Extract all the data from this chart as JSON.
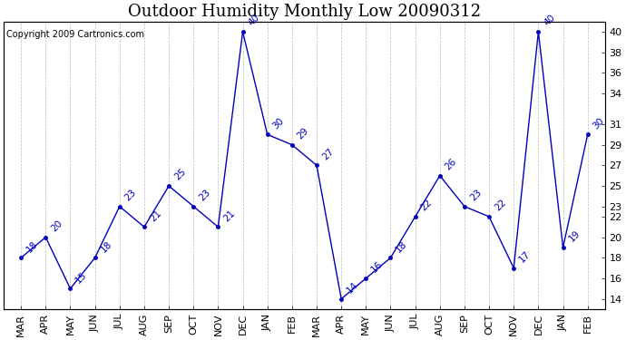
{
  "title": "Outdoor Humidity Monthly Low 20090312",
  "copyright": "Copyright 2009 Cartronics.com",
  "x_labels": [
    "MAR",
    "APR",
    "MAY",
    "JUN",
    "JUL",
    "AUG",
    "SEP",
    "OCT",
    "NOV",
    "DEC",
    "JAN",
    "FEB",
    "MAR",
    "APR",
    "MAY",
    "JUN",
    "JUL",
    "AUG",
    "SEP",
    "OCT",
    "NOV",
    "DEC",
    "JAN",
    "FEB"
  ],
  "y_values": [
    18,
    20,
    15,
    18,
    23,
    21,
    25,
    23,
    21,
    40,
    30,
    29,
    27,
    14,
    16,
    18,
    22,
    26,
    23,
    22,
    17,
    40,
    19,
    30
  ],
  "y_ticks_right": [
    14,
    16,
    18,
    20,
    22,
    23,
    25,
    27,
    29,
    31,
    34,
    36,
    38,
    40
  ],
  "ylim_min": 13.0,
  "ylim_max": 41.0,
  "line_color": "#0000bb",
  "bg_color": "#ffffff",
  "grid_color": "#bbbbbb",
  "title_fontsize": 13,
  "tick_fontsize": 8,
  "annot_fontsize": 7.5,
  "copyright_fontsize": 7
}
